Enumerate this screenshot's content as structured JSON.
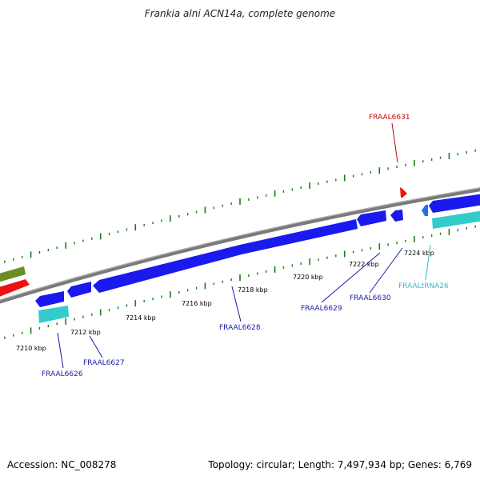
{
  "title": "Frankia alni ACN14a, complete genome",
  "footer": {
    "accession": "Accession: NC_008278",
    "topology": "Topology: circular; Length: 7,497,934 bp; Genes: 6,769"
  },
  "colors": {
    "backbone": "#8a8a8a",
    "cds": "#1a1aee",
    "trna": "#33cccc",
    "highlight": "#ee1111",
    "other": "#6b8e23",
    "tick": "#1a7a1a",
    "label_blue": "#1a1aaa",
    "label_red": "#cc0000",
    "label_cyan": "#33bbcc"
  },
  "scale_ticks": [
    "7210 kbp",
    "7212 kbp",
    "7214 kbp",
    "7216 kbp",
    "7218 kbp",
    "7220 kbp",
    "7222 kbp",
    "7224 kbp"
  ],
  "genes": [
    {
      "label": "FRAAL6626",
      "type": "cds"
    },
    {
      "label": "FRAAL6627",
      "type": "cds"
    },
    {
      "label": "FRAAL6628",
      "type": "cds"
    },
    {
      "label": "FRAAL6629",
      "type": "cds"
    },
    {
      "label": "FRAAL6630",
      "type": "cds"
    },
    {
      "label": "FRAALtRNA26",
      "type": "trna"
    },
    {
      "label": "FRAAL6631",
      "type": "highlight"
    }
  ]
}
